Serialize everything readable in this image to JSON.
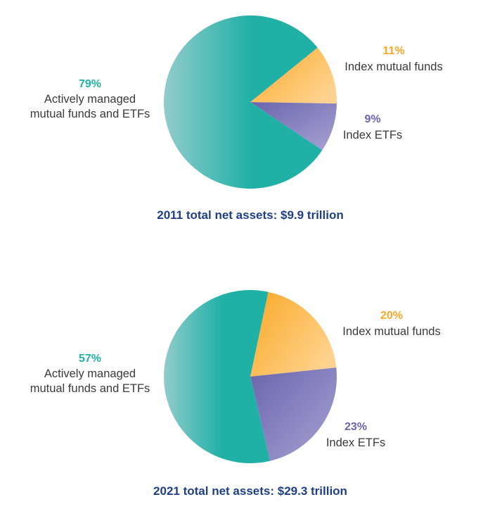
{
  "colors": {
    "active": "#20b0a6",
    "active_light": "#92cccb",
    "index_funds": "#f9a826",
    "index_funds_light": "#ffd38f",
    "index_etfs": "#6a65ad",
    "index_etfs_light": "#a7a3d3",
    "caption": "#1f3f86",
    "label": "#3a3a3a"
  },
  "chart_data": [
    {
      "type": "pie",
      "title": "2011 total net assets: $9.9 trillion",
      "slices": [
        {
          "key": "active",
          "percent_label": "79%",
          "label_lines": [
            "Actively managed",
            "mutual funds and ETFs"
          ],
          "value": 79
        },
        {
          "key": "index_funds",
          "percent_label": "11%",
          "label_lines": [
            "Index mutual funds"
          ],
          "value": 11
        },
        {
          "key": "index_etfs",
          "percent_label": "9%",
          "label_lines": [
            "Index ETFs"
          ],
          "value": 9
        }
      ]
    },
    {
      "type": "pie",
      "title": "2021 total net assets: $29.3 trillion",
      "slices": [
        {
          "key": "active",
          "percent_label": "57%",
          "label_lines": [
            "Actively managed",
            "mutual funds and ETFs"
          ],
          "value": 57
        },
        {
          "key": "index_funds",
          "percent_label": "20%",
          "label_lines": [
            "Index mutual funds"
          ],
          "value": 20
        },
        {
          "key": "index_etfs",
          "percent_label": "23%",
          "label_lines": [
            "Index ETFs"
          ],
          "value": 23
        }
      ]
    }
  ]
}
